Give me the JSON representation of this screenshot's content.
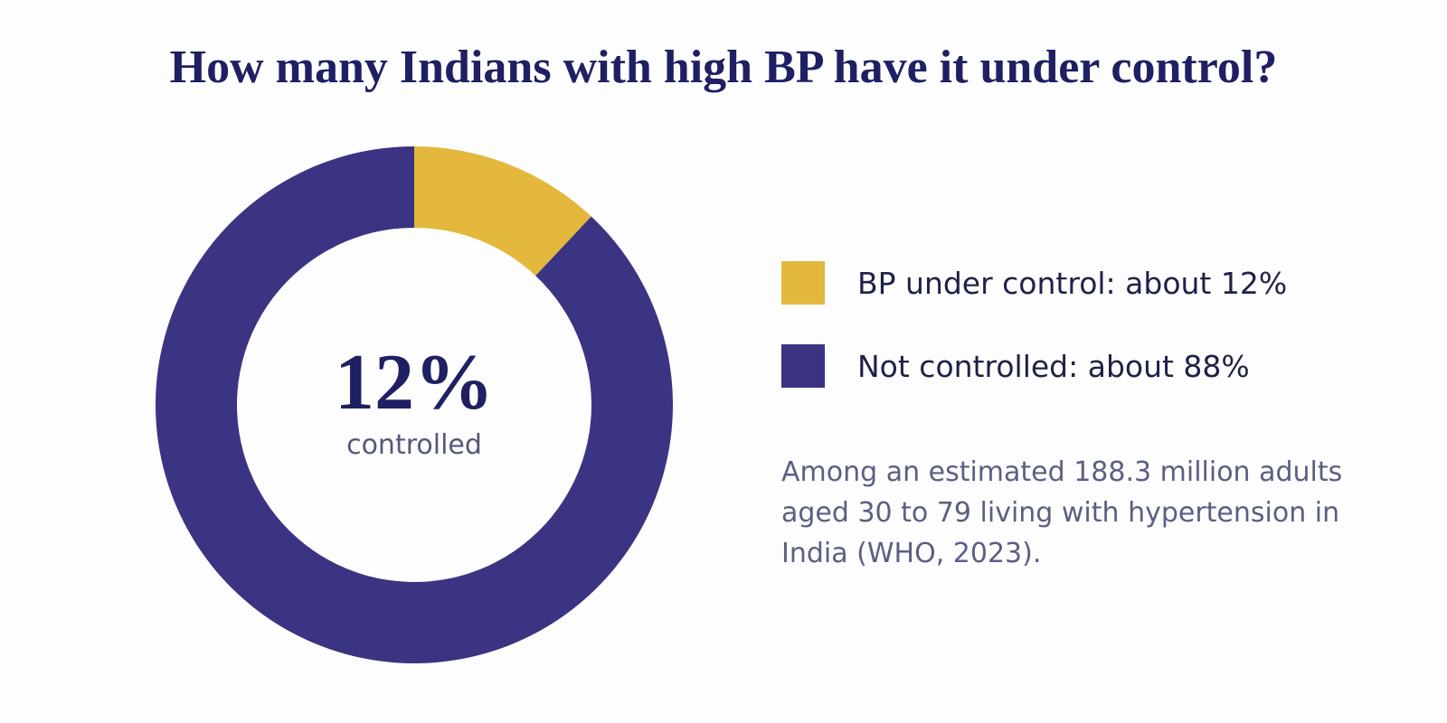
{
  "chart_data": {
    "type": "pie",
    "title": "How many Indians with high BP have it under control?",
    "categories": [
      "BP under control",
      "Not controlled"
    ],
    "values": [
      12,
      88
    ],
    "colors": [
      "#e3b83d",
      "#3b3483"
    ],
    "legend": {
      "placement": "right",
      "entries": [
        "BP under control: about 12%",
        "Not controlled: about 88%"
      ]
    },
    "center_value": "12%",
    "center_caption": "controlled",
    "note": "Among an estimated 188.3 million adults aged 30 to 79 living with hypertension in India (WHO, 2023)."
  }
}
